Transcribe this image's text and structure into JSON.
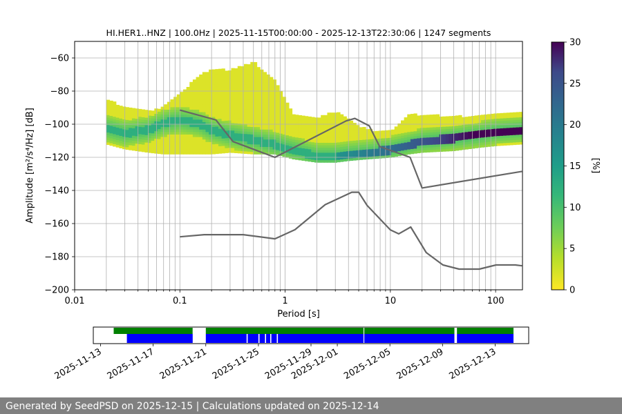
{
  "chart_data": {
    "type": "heatmap",
    "title": "HI.HER1..HNZ | 100.0Hz | 2025-11-15T00:00:00 - 2025-12-13T22:30:06 | 1247 segments",
    "xlabel": "Period [s]",
    "ylabel": "Amplitude [m²/s⁴/Hz] [dB]",
    "xscale": "log",
    "xlim": [
      0.01,
      180
    ],
    "ylim": [
      -200,
      -50
    ],
    "xtick_labels": [
      "0.01",
      "0.1",
      "1",
      "10",
      "100"
    ],
    "ytick_labels": [
      "−200",
      "−180",
      "−160",
      "−140",
      "−120",
      "−100",
      "−80",
      "−60"
    ],
    "grid": true,
    "colormap": "viridis",
    "colorbar": {
      "label": "[%]",
      "range": [
        0,
        30
      ],
      "tick_labels": [
        "0",
        "5",
        "10",
        "15",
        "20",
        "25",
        "30"
      ]
    },
    "mode_curve": {
      "period": [
        0.02,
        0.03,
        0.05,
        0.07,
        0.1,
        0.15,
        0.2,
        0.3,
        0.5,
        0.8,
        1.2,
        2,
        3,
        4,
        6,
        10,
        15,
        20,
        40,
        70,
        100,
        180
      ],
      "db": [
        -103,
        -106,
        -104,
        -100,
        -98,
        -100,
        -104,
        -107,
        -110,
        -113,
        -116,
        -120,
        -120,
        -119,
        -118,
        -116,
        -113,
        -111,
        -109,
        -107,
        -105,
        -104
      ]
    },
    "envelope": {
      "period": [
        0.02,
        0.03,
        0.05,
        0.07,
        0.1,
        0.15,
        0.2,
        0.3,
        0.5,
        0.8,
        1.2,
        2,
        3,
        4,
        6,
        10,
        15,
        20,
        40,
        70,
        100,
        180
      ],
      "upper_db": [
        -86,
        -90,
        -93,
        -90,
        -82,
        -72,
        -67,
        -68,
        -63,
        -74,
        -95,
        -97,
        -93,
        -98,
        -104,
        -105,
        -95,
        -95,
        -96,
        -96,
        -94,
        -93
      ],
      "lower_db": [
        -112,
        -115,
        -117,
        -118,
        -118,
        -118,
        -118,
        -117,
        -118,
        -118,
        -121,
        -123,
        -123,
        -122,
        -121,
        -120,
        -118,
        -117,
        -116,
        -114,
        -113,
        -112
      ]
    },
    "noise_models": [
      {
        "period": [
          0.1,
          0.17,
          0.4,
          0.8,
          1.24,
          2.4,
          4.3,
          5,
          6,
          10,
          12,
          15.6,
          21.9,
          31.6,
          45,
          70,
          101,
          154,
          178
        ],
        "db": [
          -168,
          -166.7,
          -166.7,
          -169.2,
          -163.7,
          -148.6,
          -141.1,
          -141.1,
          -149,
          -163.8,
          -166.2,
          -162.1,
          -177.5,
          -185,
          -187.5,
          -187.5,
          -185,
          -185,
          -185.5
        ]
      },
      {
        "period": [
          0.1,
          0.22,
          0.32,
          0.8,
          3.8,
          4.6,
          6.3,
          7.9,
          15.4,
          20,
          178
        ],
        "db": [
          -91.5,
          -97.4,
          -110.5,
          -120,
          -98,
          -96.5,
          -101,
          -113.5,
          -120,
          -138.5,
          -128.5
        ]
      }
    ]
  },
  "timeline": {
    "date_labels": [
      "2025-11-13",
      "2025-11-17",
      "2025-11-21",
      "2025-11-25",
      "2025-11-29",
      "2025-12-01",
      "2025-12-05",
      "2025-12-09",
      "2025-12-13"
    ],
    "green_spans": [
      [
        "2025-11-14",
        "2025-11-20"
      ],
      [
        "2025-11-21",
        "2025-12-02.99"
      ],
      [
        "2025-12-03.05",
        "2025-12-09.9"
      ],
      [
        "2025-12-10.1",
        "2025-12-14.4"
      ]
    ],
    "blue_spans": [
      [
        "2025-11-15",
        "2025-11-20"
      ],
      [
        "2025-11-21",
        "2025-12-02.99"
      ],
      [
        "2025-12-03.05",
        "2025-12-09.9"
      ],
      [
        "2025-12-10.1",
        "2025-12-14.4"
      ]
    ],
    "blue_gaps": [
      "2025-11-24.1",
      "2025-11-25",
      "2025-11-25.5",
      "2025-11-25.9",
      "2025-11-26.4"
    ],
    "colors": {
      "green": "#008000",
      "blue": "#0000ff"
    }
  },
  "footer": {
    "text": "Generated by SeedPSD on 2025-12-15 | Calculations updated on 2025-12-14",
    "bg": "#808080"
  }
}
